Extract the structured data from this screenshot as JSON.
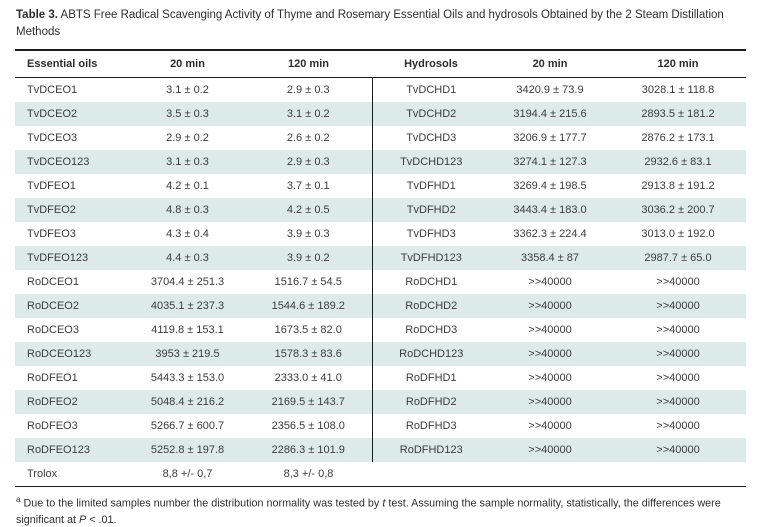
{
  "caption": {
    "label": "Table 3.",
    "text": " ABTS Free Radical Scavenging Activity of Thyme and Rosemary Essential Oils and hydrosols Obtained by the 2 Steam Distillation Methods"
  },
  "table": {
    "headers": [
      "Essential oils",
      "20 min",
      "120 min",
      "Hydrosols",
      "20 min",
      "120 min"
    ],
    "rows": [
      [
        "TvDCEO1",
        "3.1 ± 0.2",
        "2.9 ± 0.3",
        "TvDCHD1",
        "3420.9 ± 73.9",
        "3028.1 ± 118.8"
      ],
      [
        "TvDCEO2",
        "3.5 ± 0.3",
        "3.1 ± 0.2",
        "TvDCHD2",
        "3194.4 ± 215.6",
        "2893.5 ± 181.2"
      ],
      [
        "TvDCEO3",
        "2.9 ± 0.2",
        "2.6 ± 0.2",
        "TvDCHD3",
        "3206.9 ± 177.7",
        "2876.2 ± 173.1"
      ],
      [
        "TvDCEO123",
        "3.1 ± 0.3",
        "2.9 ± 0.3",
        "TvDCHD123",
        "3274.1 ± 127.3",
        "2932.6 ± 83.1"
      ],
      [
        "TvDFEO1",
        "4.2 ± 0.1",
        "3.7 ± 0.1",
        "TvDFHD1",
        "3269.4 ± 198.5",
        "2913.8 ± 191.2"
      ],
      [
        "TvDFEO2",
        "4.8 ± 0.3",
        "4.2 ± 0.5",
        "TvDFHD2",
        "3443.4 ± 183.0",
        "3036.2 ± 200.7"
      ],
      [
        "TvDFEO3",
        "4.3 ± 0.4",
        "3.9 ± 0.3",
        "TvDFHD3",
        "3362.3 ± 224.4",
        "3013.0 ± 192.0"
      ],
      [
        "TvDFEO123",
        "4.4 ± 0.3",
        "3.9 ± 0.2",
        "TvDFHD123",
        "3358.4 ± 87",
        "2987.7 ± 65.0"
      ],
      [
        "RoDCEO1",
        "3704.4 ± 251.3",
        "1516.7 ± 54.5",
        "RoDCHD1",
        ">>40000",
        ">>40000"
      ],
      [
        "RoDCEO2",
        "4035.1 ± 237.3",
        "1544.6 ± 189.2",
        "RoDCHD2",
        ">>40000",
        ">>40000"
      ],
      [
        "RoDCEO3",
        "4119.8 ± 153.1",
        "1673.5 ± 82.0",
        "RoDCHD3",
        ">>40000",
        ">>40000"
      ],
      [
        "RoDCEO123",
        "3953 ± 219.5",
        "1578.3 ± 83.6",
        "RoDCHD123",
        ">>40000",
        ">>40000"
      ],
      [
        "RoDFEO1",
        "5443.3 ± 153.0",
        "2333.0 ± 41.0",
        "RoDFHD1",
        ">>40000",
        ">>40000"
      ],
      [
        "RoDFEO2",
        "5048.4 ± 216.2",
        "2169.5 ± 143.7",
        "RoDFHD2",
        ">>40000",
        ">>40000"
      ],
      [
        "RoDFEO3",
        "5266.7 ± 600.7",
        "2356.5 ± 108.0",
        "RoDFHD3",
        ">>40000",
        ">>40000"
      ],
      [
        "RoDFEO123",
        "5252.8 ± 197.8",
        "2286.3 ± 101.9",
        "RoDFHD123",
        ">>40000",
        ">>40000"
      ]
    ],
    "trolox_row": [
      "Trolox",
      "8,8 +/- 0,7",
      "8,3 +/- 0,8",
      "",
      "",
      ""
    ]
  },
  "footnote": {
    "marker": "a",
    "part1": " Due to the limited samples number the distribution normality was tested by ",
    "italic1": "t",
    "part2": " test. Assuming the sample normality, statistically, the differences were significant at ",
    "italic2": "P",
    "part3": " < .01."
  },
  "colors": {
    "stripe": "#dcebe8",
    "rule": "#1c1c1c",
    "text": "#3c3c3c"
  }
}
